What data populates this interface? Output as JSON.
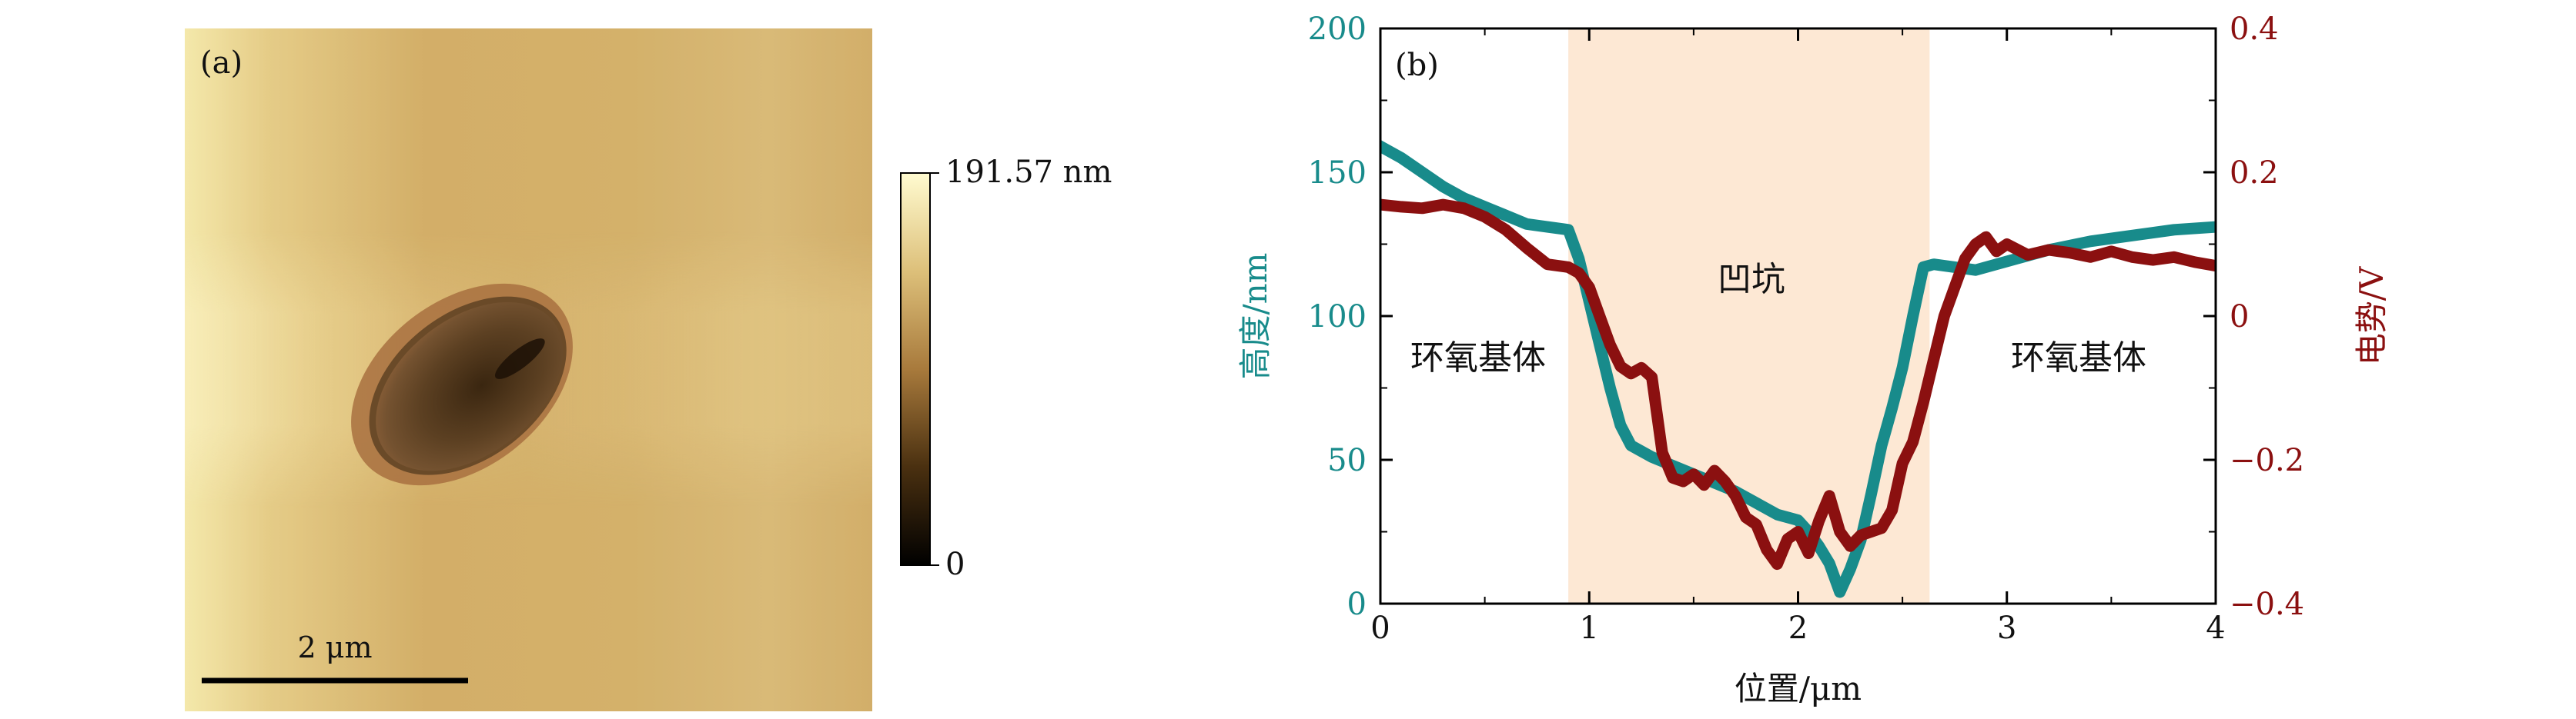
{
  "panel_a": {
    "label": "(a)",
    "colorbar": {
      "max_label": "191.57 nm",
      "min_label": "0"
    },
    "scalebar": {
      "label": "2 μm"
    },
    "colors": {
      "light": "#fbf4c0",
      "mid": "#d8b56e",
      "dark": "#1e1207",
      "rim": "#a86b3e"
    }
  },
  "panel_b": {
    "label": "(b)",
    "region_labels": {
      "left": "环氧基体",
      "center": "凹坑",
      "right": "环氧基体"
    },
    "colors": {
      "height": "#188b8b",
      "potential": "#8b1010",
      "pit_band": "#fde8d4"
    }
  },
  "chart_data": [
    {
      "type": "heatmap",
      "title": "(a)",
      "description_units": "nm",
      "colorbar_range": [
        0,
        191.57
      ],
      "colorbar_labels": [
        "191.57 nm",
        "0"
      ],
      "scalebar_label": "2 μm"
    },
    {
      "type": "line",
      "title": "(b)",
      "xlabel": "位置/μm",
      "ylabel_left": "高度/nm",
      "ylabel_right": "电势/V",
      "xlim": [
        0,
        4
      ],
      "ylim_left": [
        0,
        200
      ],
      "ylim_right": [
        -0.4,
        0.4
      ],
      "x_ticks": [
        0,
        1,
        2,
        3,
        4
      ],
      "y_ticks_left": [
        0,
        50,
        100,
        150,
        200
      ],
      "y_ticks_right": [
        "−0.4",
        "−0.2",
        "0",
        "0.2",
        "0.4"
      ],
      "shaded_region_x": [
        0.9,
        2.63
      ],
      "series": [
        {
          "name": "高度",
          "axis": "left",
          "x": [
            0,
            0.1,
            0.2,
            0.3,
            0.4,
            0.5,
            0.6,
            0.7,
            0.8,
            0.9,
            0.95,
            1.0,
            1.05,
            1.1,
            1.15,
            1.2,
            1.3,
            1.4,
            1.5,
            1.6,
            1.7,
            1.8,
            1.9,
            2.0,
            2.05,
            2.1,
            2.15,
            2.2,
            2.25,
            2.3,
            2.35,
            2.4,
            2.45,
            2.5,
            2.55,
            2.6,
            2.65,
            2.75,
            2.85,
            2.95,
            3.05,
            3.2,
            3.4,
            3.6,
            3.8,
            4.0
          ],
          "values": [
            159,
            155,
            150,
            145,
            141,
            138,
            135,
            132,
            131,
            130,
            120,
            105,
            90,
            75,
            62,
            55,
            51,
            48,
            45,
            42,
            39,
            35,
            31,
            29,
            25,
            20,
            14,
            4,
            12,
            22,
            38,
            55,
            68,
            82,
            100,
            117,
            118,
            117,
            116,
            118,
            120,
            123,
            126,
            128,
            130,
            131
          ]
        },
        {
          "name": "电势",
          "axis": "right",
          "x": [
            0,
            0.1,
            0.2,
            0.3,
            0.4,
            0.5,
            0.6,
            0.7,
            0.8,
            0.9,
            0.95,
            1.0,
            1.05,
            1.1,
            1.15,
            1.2,
            1.25,
            1.3,
            1.35,
            1.4,
            1.45,
            1.5,
            1.55,
            1.6,
            1.65,
            1.7,
            1.75,
            1.8,
            1.85,
            1.9,
            1.95,
            2.0,
            2.05,
            2.1,
            2.15,
            2.2,
            2.25,
            2.3,
            2.35,
            2.4,
            2.45,
            2.5,
            2.55,
            2.6,
            2.65,
            2.7,
            2.75,
            2.8,
            2.85,
            2.9,
            2.95,
            3.0,
            3.1,
            3.2,
            3.3,
            3.4,
            3.5,
            3.6,
            3.7,
            3.8,
            3.9,
            4.0
          ],
          "values": [
            0.155,
            0.152,
            0.15,
            0.155,
            0.15,
            0.138,
            0.12,
            0.095,
            0.072,
            0.068,
            0.06,
            0.04,
            0.0,
            -0.04,
            -0.07,
            -0.08,
            -0.072,
            -0.085,
            -0.19,
            -0.225,
            -0.23,
            -0.22,
            -0.235,
            -0.215,
            -0.23,
            -0.25,
            -0.28,
            -0.29,
            -0.325,
            -0.345,
            -0.31,
            -0.3,
            -0.33,
            -0.285,
            -0.25,
            -0.3,
            -0.32,
            -0.305,
            -0.3,
            -0.295,
            -0.27,
            -0.205,
            -0.175,
            -0.12,
            -0.06,
            0.0,
            0.04,
            0.08,
            0.1,
            0.11,
            0.09,
            0.1,
            0.085,
            0.092,
            0.088,
            0.082,
            0.09,
            0.082,
            0.078,
            0.082,
            0.075,
            0.07
          ]
        }
      ]
    }
  ]
}
